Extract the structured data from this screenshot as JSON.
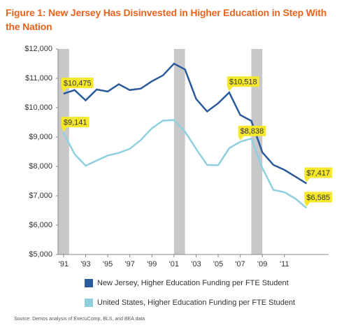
{
  "chart_data": {
    "type": "line",
    "title": "Figure 1: New Jersey Has Disinvested in Higher Education in Step With the Nation",
    "source": "Source: Demos analysis of ExecuComp, BLS, and BEA data",
    "x": [
      1991,
      1992,
      1993,
      1994,
      1995,
      1996,
      1997,
      1998,
      1999,
      2000,
      2001,
      2002,
      2003,
      2004,
      2005,
      2006,
      2007,
      2008,
      2009,
      2010,
      2011,
      2012,
      2013
    ],
    "series": [
      {
        "name": "New Jersey, Higher Education Funding per FTE Student",
        "color": "#2b5a9b",
        "values": [
          10475,
          10600,
          10250,
          10620,
          10550,
          10800,
          10600,
          10650,
          10900,
          11100,
          11500,
          11300,
          10300,
          9870,
          10150,
          10518,
          9750,
          9550,
          8480,
          8050,
          7880,
          7650,
          7417
        ],
        "value_labels": [
          "$10,475",
          null,
          null,
          null,
          null,
          null,
          null,
          null,
          null,
          null,
          null,
          null,
          null,
          null,
          null,
          "$10,518",
          null,
          null,
          null,
          null,
          null,
          null,
          "$7,417"
        ]
      },
      {
        "name": "United States, Higher Education Funding per FTE Student",
        "color": "#8fcfe0",
        "values": [
          9141,
          8420,
          8020,
          8200,
          8370,
          8460,
          8600,
          8900,
          9300,
          9560,
          9580,
          9180,
          8600,
          8050,
          8040,
          8620,
          8838,
          8950,
          7950,
          7200,
          7120,
          6900,
          6585
        ],
        "value_labels": [
          "$9,141",
          null,
          null,
          null,
          null,
          null,
          null,
          null,
          null,
          null,
          null,
          null,
          null,
          null,
          null,
          null,
          "$8,838",
          null,
          null,
          null,
          null,
          null,
          "$6,585"
        ]
      }
    ],
    "recessions": [
      [
        1990.5,
        1991.5
      ],
      [
        2001,
        2002
      ],
      [
        2008,
        2009
      ]
    ],
    "recession_color": "#c8c8c8",
    "callout_color": "#f5e82a",
    "xlim": [
      1990.5,
      2015
    ],
    "ylim": [
      5000,
      12000
    ],
    "xticks": [
      {
        "value": 1991,
        "label": "'91"
      },
      {
        "value": 1993,
        "label": "'93"
      },
      {
        "value": 1995,
        "label": "'95"
      },
      {
        "value": 1997,
        "label": "'97"
      },
      {
        "value": 1999,
        "label": "'99"
      },
      {
        "value": 2001,
        "label": "'01"
      },
      {
        "value": 2003,
        "label": "'03"
      },
      {
        "value": 2005,
        "label": "'05"
      },
      {
        "value": 2007,
        "label": "'07"
      },
      {
        "value": 2009,
        "label": "'09"
      },
      {
        "value": 2011,
        "label": "'11"
      }
    ],
    "yticks": [
      {
        "value": 5000,
        "label": "$5,000"
      },
      {
        "value": 6000,
        "label": "$6,000"
      },
      {
        "value": 7000,
        "label": "$7,000"
      },
      {
        "value": 8000,
        "label": "$8,000"
      },
      {
        "value": 9000,
        "label": "$9,000"
      },
      {
        "value": 10000,
        "label": "$10,000"
      },
      {
        "value": 11000,
        "label": "$11,000"
      },
      {
        "value": 12000,
        "label": "$12,000"
      }
    ],
    "grid": false
  }
}
